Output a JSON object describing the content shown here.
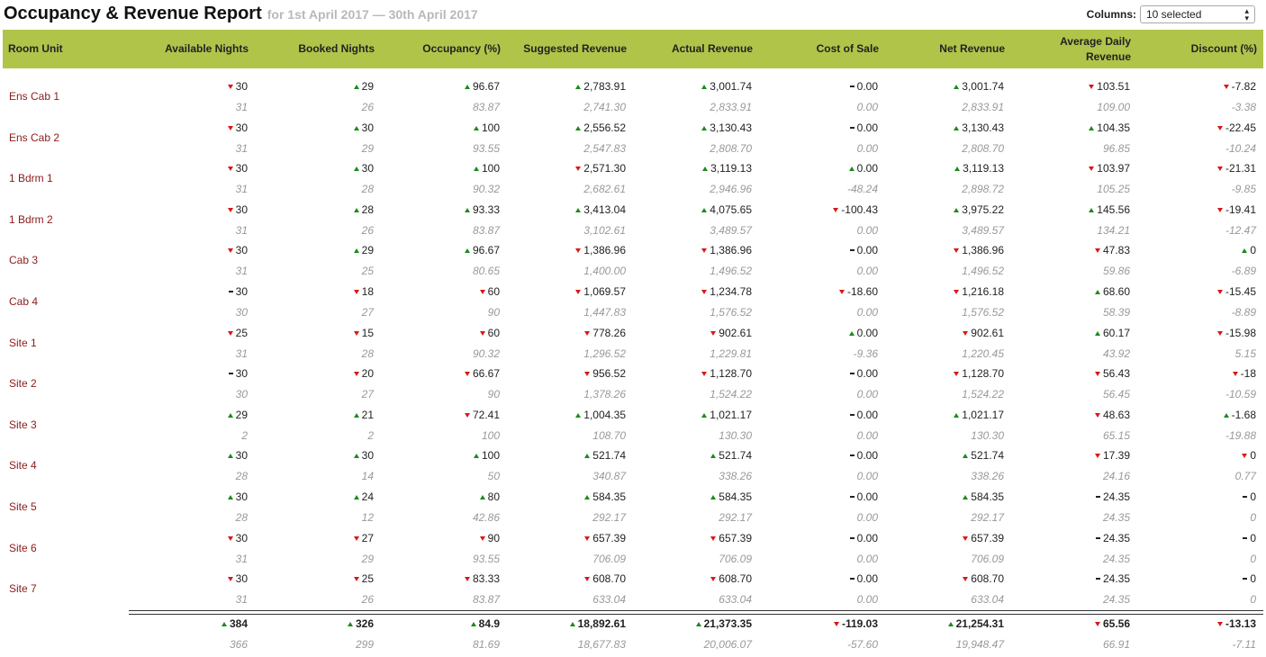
{
  "title": "Occupancy & Revenue Report",
  "subtitle": "for 1st April 2017 — 30th April 2017",
  "columns_control": {
    "label": "Columns:",
    "value": "10 selected"
  },
  "headers": [
    "Room Unit",
    "Available Nights",
    "Booked Nights",
    "Occupancy (%)",
    "Suggested Revenue",
    "Actual Revenue",
    "Cost of Sale",
    "Net Revenue",
    "Average Daily Revenue",
    "Discount (%)"
  ],
  "colors": {
    "header_bg": "#b1c44a",
    "up": "#1d8a1d",
    "down": "#d81818",
    "room_label": "#8b1a1a"
  },
  "rows": [
    {
      "unit": "Ens Cab 1",
      "cur": [
        [
          "down",
          "30"
        ],
        [
          "up",
          "29"
        ],
        [
          "up",
          "96.67"
        ],
        [
          "up",
          "2,783.91"
        ],
        [
          "up",
          "3,001.74"
        ],
        [
          "flat",
          "0.00"
        ],
        [
          "up",
          "3,001.74"
        ],
        [
          "down",
          "103.51"
        ],
        [
          "down",
          "-7.82"
        ]
      ],
      "prev": [
        "31",
        "26",
        "83.87",
        "2,741.30",
        "2,833.91",
        "0.00",
        "2,833.91",
        "109.00",
        "-3.38"
      ]
    },
    {
      "unit": "Ens Cab 2",
      "cur": [
        [
          "down",
          "30"
        ],
        [
          "up",
          "30"
        ],
        [
          "up",
          "100"
        ],
        [
          "up",
          "2,556.52"
        ],
        [
          "up",
          "3,130.43"
        ],
        [
          "flat",
          "0.00"
        ],
        [
          "up",
          "3,130.43"
        ],
        [
          "up",
          "104.35"
        ],
        [
          "down",
          "-22.45"
        ]
      ],
      "prev": [
        "31",
        "29",
        "93.55",
        "2,547.83",
        "2,808.70",
        "0.00",
        "2,808.70",
        "96.85",
        "-10.24"
      ]
    },
    {
      "unit": "1 Bdrm 1",
      "cur": [
        [
          "down",
          "30"
        ],
        [
          "up",
          "30"
        ],
        [
          "up",
          "100"
        ],
        [
          "down",
          "2,571.30"
        ],
        [
          "up",
          "3,119.13"
        ],
        [
          "up",
          "0.00"
        ],
        [
          "up",
          "3,119.13"
        ],
        [
          "down",
          "103.97"
        ],
        [
          "down",
          "-21.31"
        ]
      ],
      "prev": [
        "31",
        "28",
        "90.32",
        "2,682.61",
        "2,946.96",
        "-48.24",
        "2,898.72",
        "105.25",
        "-9.85"
      ]
    },
    {
      "unit": "1 Bdrm 2",
      "cur": [
        [
          "down",
          "30"
        ],
        [
          "up",
          "28"
        ],
        [
          "up",
          "93.33"
        ],
        [
          "up",
          "3,413.04"
        ],
        [
          "up",
          "4,075.65"
        ],
        [
          "down",
          "-100.43"
        ],
        [
          "up",
          "3,975.22"
        ],
        [
          "up",
          "145.56"
        ],
        [
          "down",
          "-19.41"
        ]
      ],
      "prev": [
        "31",
        "26",
        "83.87",
        "3,102.61",
        "3,489.57",
        "0.00",
        "3,489.57",
        "134.21",
        "-12.47"
      ]
    },
    {
      "unit": "Cab 3",
      "cur": [
        [
          "down",
          "30"
        ],
        [
          "up",
          "29"
        ],
        [
          "up",
          "96.67"
        ],
        [
          "down",
          "1,386.96"
        ],
        [
          "down",
          "1,386.96"
        ],
        [
          "flat",
          "0.00"
        ],
        [
          "down",
          "1,386.96"
        ],
        [
          "down",
          "47.83"
        ],
        [
          "up",
          "0"
        ]
      ],
      "prev": [
        "31",
        "25",
        "80.65",
        "1,400.00",
        "1,496.52",
        "0.00",
        "1,496.52",
        "59.86",
        "-6.89"
      ]
    },
    {
      "unit": "Cab 4",
      "cur": [
        [
          "flat",
          "30"
        ],
        [
          "down",
          "18"
        ],
        [
          "down",
          "60"
        ],
        [
          "down",
          "1,069.57"
        ],
        [
          "down",
          "1,234.78"
        ],
        [
          "down",
          "-18.60"
        ],
        [
          "down",
          "1,216.18"
        ],
        [
          "up",
          "68.60"
        ],
        [
          "down",
          "-15.45"
        ]
      ],
      "prev": [
        "30",
        "27",
        "90",
        "1,447.83",
        "1,576.52",
        "0.00",
        "1,576.52",
        "58.39",
        "-8.89"
      ]
    },
    {
      "unit": "Site 1",
      "cur": [
        [
          "down",
          "25"
        ],
        [
          "down",
          "15"
        ],
        [
          "down",
          "60"
        ],
        [
          "down",
          "778.26"
        ],
        [
          "down",
          "902.61"
        ],
        [
          "up",
          "0.00"
        ],
        [
          "down",
          "902.61"
        ],
        [
          "up",
          "60.17"
        ],
        [
          "down",
          "-15.98"
        ]
      ],
      "prev": [
        "31",
        "28",
        "90.32",
        "1,296.52",
        "1,229.81",
        "-9.36",
        "1,220.45",
        "43.92",
        "5.15"
      ]
    },
    {
      "unit": "Site 2",
      "cur": [
        [
          "flat",
          "30"
        ],
        [
          "down",
          "20"
        ],
        [
          "down",
          "66.67"
        ],
        [
          "down",
          "956.52"
        ],
        [
          "down",
          "1,128.70"
        ],
        [
          "flat",
          "0.00"
        ],
        [
          "down",
          "1,128.70"
        ],
        [
          "down",
          "56.43"
        ],
        [
          "down",
          "-18"
        ]
      ],
      "prev": [
        "30",
        "27",
        "90",
        "1,378.26",
        "1,524.22",
        "0.00",
        "1,524.22",
        "56.45",
        "-10.59"
      ]
    },
    {
      "unit": "Site 3",
      "cur": [
        [
          "up",
          "29"
        ],
        [
          "up",
          "21"
        ],
        [
          "down",
          "72.41"
        ],
        [
          "up",
          "1,004.35"
        ],
        [
          "up",
          "1,021.17"
        ],
        [
          "flat",
          "0.00"
        ],
        [
          "up",
          "1,021.17"
        ],
        [
          "down",
          "48.63"
        ],
        [
          "up",
          "-1.68"
        ]
      ],
      "prev": [
        "2",
        "2",
        "100",
        "108.70",
        "130.30",
        "0.00",
        "130.30",
        "65.15",
        "-19.88"
      ]
    },
    {
      "unit": "Site 4",
      "cur": [
        [
          "up",
          "30"
        ],
        [
          "up",
          "30"
        ],
        [
          "up",
          "100"
        ],
        [
          "up",
          "521.74"
        ],
        [
          "up",
          "521.74"
        ],
        [
          "flat",
          "0.00"
        ],
        [
          "up",
          "521.74"
        ],
        [
          "down",
          "17.39"
        ],
        [
          "down",
          "0"
        ]
      ],
      "prev": [
        "28",
        "14",
        "50",
        "340.87",
        "338.26",
        "0.00",
        "338.26",
        "24.16",
        "0.77"
      ]
    },
    {
      "unit": "Site 5",
      "cur": [
        [
          "up",
          "30"
        ],
        [
          "up",
          "24"
        ],
        [
          "up",
          "80"
        ],
        [
          "up",
          "584.35"
        ],
        [
          "up",
          "584.35"
        ],
        [
          "flat",
          "0.00"
        ],
        [
          "up",
          "584.35"
        ],
        [
          "flat",
          "24.35"
        ],
        [
          "flat",
          "0"
        ]
      ],
      "prev": [
        "28",
        "12",
        "42.86",
        "292.17",
        "292.17",
        "0.00",
        "292.17",
        "24.35",
        "0"
      ]
    },
    {
      "unit": "Site 6",
      "cur": [
        [
          "down",
          "30"
        ],
        [
          "down",
          "27"
        ],
        [
          "down",
          "90"
        ],
        [
          "down",
          "657.39"
        ],
        [
          "down",
          "657.39"
        ],
        [
          "flat",
          "0.00"
        ],
        [
          "down",
          "657.39"
        ],
        [
          "flat",
          "24.35"
        ],
        [
          "flat",
          "0"
        ]
      ],
      "prev": [
        "31",
        "29",
        "93.55",
        "706.09",
        "706.09",
        "0.00",
        "706.09",
        "24.35",
        "0"
      ]
    },
    {
      "unit": "Site 7",
      "cur": [
        [
          "down",
          "30"
        ],
        [
          "down",
          "25"
        ],
        [
          "down",
          "83.33"
        ],
        [
          "down",
          "608.70"
        ],
        [
          "down",
          "608.70"
        ],
        [
          "flat",
          "0.00"
        ],
        [
          "down",
          "608.70"
        ],
        [
          "flat",
          "24.35"
        ],
        [
          "flat",
          "0"
        ]
      ],
      "prev": [
        "31",
        "26",
        "83.87",
        "633.04",
        "633.04",
        "0.00",
        "633.04",
        "24.35",
        "0"
      ]
    }
  ],
  "totals": {
    "cur": [
      [
        "up",
        "384"
      ],
      [
        "up",
        "326"
      ],
      [
        "up",
        "84.9"
      ],
      [
        "up",
        "18,892.61"
      ],
      [
        "up",
        "21,373.35"
      ],
      [
        "down",
        "-119.03"
      ],
      [
        "up",
        "21,254.31"
      ],
      [
        "down",
        "65.56"
      ],
      [
        "down",
        "-13.13"
      ]
    ],
    "prev": [
      "366",
      "299",
      "81.69",
      "18,677.83",
      "20,006.07",
      "-57.60",
      "19,948.47",
      "66.91",
      "-7.11"
    ]
  }
}
